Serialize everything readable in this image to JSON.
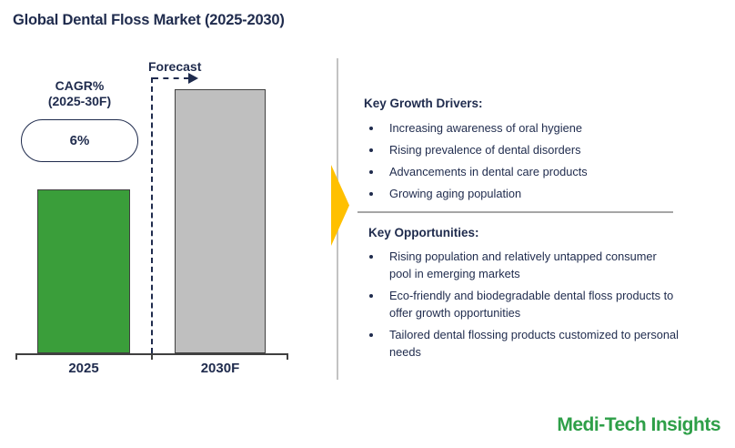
{
  "page": {
    "title": "Global Dental Floss Market (2025-2030)"
  },
  "chart": {
    "forecast_label": "Forecast",
    "cagr_line1": "CAGR%",
    "cagr_line2": "(2025-30F)",
    "cagr_value": "6%"
  },
  "chart_data": {
    "type": "bar",
    "title": "Global Dental Floss Market (2025-2030)",
    "categories": [
      "2025",
      "2030F"
    ],
    "values": [
      62,
      100
    ],
    "values_note": "No numeric axis or data labels shown; values are relative bar heights with 2030F = 100",
    "cagr": "6% (2025-30F)",
    "bar_colors": [
      "#3A9E3A",
      "#BFBFBF"
    ],
    "xlabel": "",
    "ylabel": "",
    "grid": false,
    "legend": "none",
    "forecast_divider_after_category": "2025"
  },
  "panel": {
    "growth": {
      "heading": "Key Growth Drivers:",
      "items": [
        "Increasing awareness of oral hygiene",
        "Rising prevalence of dental disorders",
        "Advancements in dental care products",
        "Growing aging population"
      ]
    },
    "opportunities": {
      "heading": "Key Opportunities:",
      "items": [
        "Rising population and relatively untapped consumer pool in emerging markets",
        "Eco-friendly and biodegradable dental floss products to offer growth opportunities",
        "Tailored dental flossing products customized to personal needs"
      ]
    }
  },
  "footer": {
    "brand": "Medi-Tech Insights"
  },
  "colors": {
    "navy_text": "#1F2B4D",
    "bar_green": "#3A9E3A",
    "bar_gray": "#BFBFBF",
    "bar_border": "#404040",
    "axis": "#404040",
    "section_divider": "#A6A6A6",
    "panel_line": "#C3C3C3",
    "accent_yellow": "#FFC000",
    "brand_green": "#2E9F48"
  }
}
